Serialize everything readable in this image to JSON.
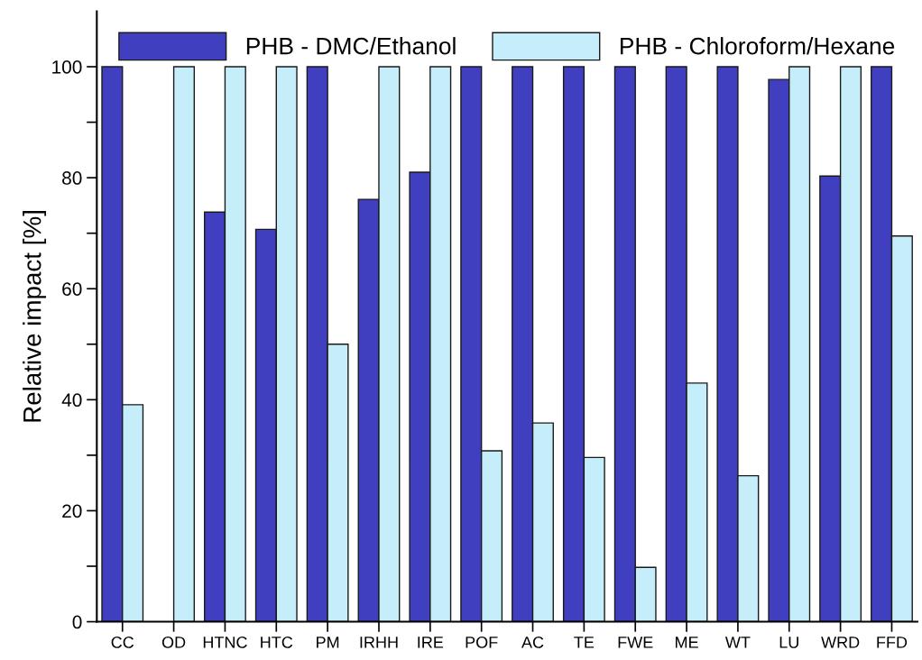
{
  "chart_data": {
    "type": "bar",
    "ylabel": "Relative impact [%]",
    "categories": [
      "CC",
      "OD",
      "HTNC",
      "HTC",
      "PM",
      "IRHH",
      "IRE",
      "POF",
      "AC",
      "TE",
      "FWE",
      "ME",
      "WT",
      "LU",
      "WRD",
      "FFD"
    ],
    "series": [
      {
        "name": "PHB - DMC/Ethanol",
        "color": "#3f3fbf",
        "values": [
          100,
          null,
          73.8,
          70.7,
          100,
          76.1,
          81.0,
          100,
          100,
          100,
          100,
          100,
          100,
          97.7,
          80.3,
          100
        ]
      },
      {
        "name": "PHB - Chloroform/Hexane",
        "color": "#c5eefa",
        "values": [
          39.1,
          100,
          100,
          100,
          50.0,
          100,
          100,
          30.8,
          35.8,
          29.6,
          9.8,
          43.0,
          26.3,
          100,
          100,
          69.5
        ]
      }
    ],
    "ylim": [
      0,
      110
    ],
    "yticks": [
      0,
      {
        "value": 10,
        "label": null
      },
      20,
      {
        "value": 30,
        "label": null
      },
      40,
      {
        "value": 50,
        "label": null
      },
      60,
      {
        "value": 70,
        "label": null
      },
      80,
      {
        "value": 90,
        "label": null
      },
      100
    ],
    "grid": false,
    "legend": "top"
  }
}
